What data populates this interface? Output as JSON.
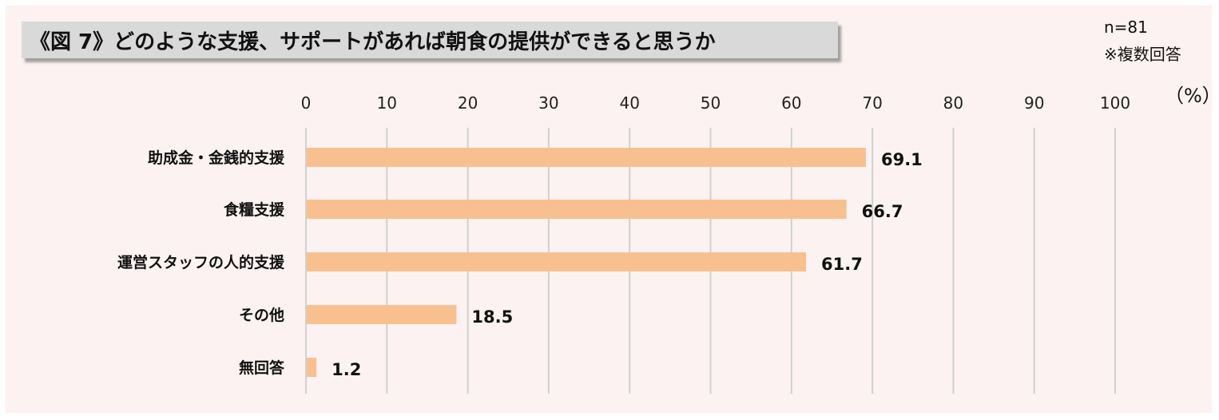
{
  "chart_data": {
    "type": "bar",
    "orientation": "horizontal",
    "title": "《図 7》どのような支援、サポートがあれば朝食の提供ができると思うか",
    "sample_note": "n=81",
    "multi_note": "※複数回答",
    "unit": "（%）",
    "categories": [
      "助成金・金銭的支援",
      "食糧支援",
      "運営スタッフの人的支援",
      "その他",
      "無回答"
    ],
    "values": [
      69.1,
      66.7,
      61.7,
      18.5,
      1.2
    ],
    "value_labels": [
      "69.1",
      "66.7",
      "61.7",
      "18.5",
      "1.2"
    ],
    "xlim": [
      0,
      100
    ],
    "ticks": [
      0,
      10,
      20,
      30,
      40,
      50,
      60,
      70,
      80,
      90,
      100
    ],
    "tick_labels": [
      "0",
      "10",
      "20",
      "30",
      "40",
      "50",
      "60",
      "70",
      "80",
      "90",
      "100"
    ],
    "grid": true,
    "axis_position": "top",
    "bar_color": "#f9c08f",
    "grid_color": "#d0d0d0"
  }
}
